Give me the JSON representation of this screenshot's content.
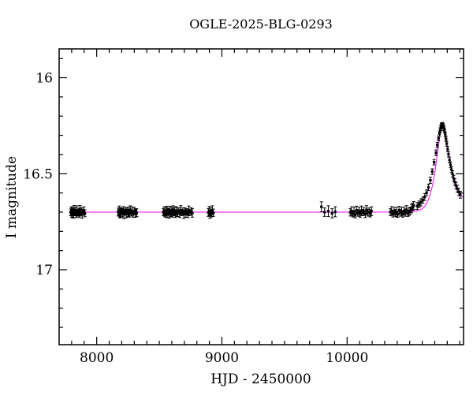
{
  "chart_data": {
    "type": "scatter",
    "title": "OGLE-2025-BLG-0293",
    "xlabel": "HJD - 2450000",
    "ylabel": "I magnitude",
    "xlim": [
      7700,
      10930
    ],
    "ylim": [
      17.39,
      15.85
    ],
    "y_axis_inverted": true,
    "grid": false,
    "x_major_ticks": [
      8000,
      9000,
      10000
    ],
    "x_tick_labels": [
      "8000",
      "9000",
      "10000"
    ],
    "x_minor_step": 100,
    "y_major_ticks": [
      16,
      16.5,
      17
    ],
    "y_tick_labels": [
      "16",
      "16.5",
      "17"
    ],
    "y_minor_step": 0.1,
    "marker_color": "#000000",
    "model_color": "#ff00ff",
    "columns": [
      "hjd_minus_2450000",
      "i_magnitude",
      "error"
    ],
    "points": [
      [
        7792,
        16.701,
        0.018
      ],
      [
        7796,
        16.695,
        0.022
      ],
      [
        7800,
        16.71,
        0.016
      ],
      [
        7804,
        16.692,
        0.02
      ],
      [
        7808,
        16.705,
        0.025
      ],
      [
        7812,
        16.698,
        0.017
      ],
      [
        7816,
        16.712,
        0.019
      ],
      [
        7820,
        16.688,
        0.023
      ],
      [
        7824,
        16.703,
        0.016
      ],
      [
        7830,
        16.696,
        0.021
      ],
      [
        7836,
        16.709,
        0.018
      ],
      [
        7842,
        16.691,
        0.024
      ],
      [
        7848,
        16.704,
        0.017
      ],
      [
        7854,
        16.699,
        0.02
      ],
      [
        7860,
        16.713,
        0.015
      ],
      [
        7866,
        16.687,
        0.022
      ],
      [
        7872,
        16.702,
        0.018
      ],
      [
        7878,
        16.695,
        0.019
      ],
      [
        7884,
        16.708,
        0.023
      ],
      [
        7890,
        16.7,
        0.016
      ],
      [
        7898,
        16.693,
        0.021
      ],
      [
        7906,
        16.706,
        0.018
      ],
      [
        8172,
        16.698,
        0.019
      ],
      [
        8176,
        16.705,
        0.016
      ],
      [
        8180,
        16.69,
        0.022
      ],
      [
        8184,
        16.712,
        0.018
      ],
      [
        8188,
        16.701,
        0.024
      ],
      [
        8192,
        16.694,
        0.017
      ],
      [
        8196,
        16.708,
        0.02
      ],
      [
        8200,
        16.697,
        0.015
      ],
      [
        8206,
        16.703,
        0.021
      ],
      [
        8212,
        16.689,
        0.018
      ],
      [
        8218,
        16.711,
        0.023
      ],
      [
        8224,
        16.7,
        0.016
      ],
      [
        8230,
        16.695,
        0.019
      ],
      [
        8236,
        16.707,
        0.022
      ],
      [
        8242,
        16.692,
        0.017
      ],
      [
        8248,
        16.704,
        0.02
      ],
      [
        8254,
        16.699,
        0.025
      ],
      [
        8260,
        16.71,
        0.016
      ],
      [
        8268,
        16.688,
        0.021
      ],
      [
        8276,
        16.702,
        0.018
      ],
      [
        8284,
        16.696,
        0.023
      ],
      [
        8292,
        16.709,
        0.017
      ],
      [
        8300,
        16.694,
        0.019
      ],
      [
        8308,
        16.705,
        0.022
      ],
      [
        8314,
        16.698,
        0.016
      ],
      [
        8320,
        16.703,
        0.02
      ],
      [
        8532,
        16.7,
        0.018
      ],
      [
        8538,
        16.693,
        0.021
      ],
      [
        8544,
        16.708,
        0.016
      ],
      [
        8550,
        16.696,
        0.023
      ],
      [
        8556,
        16.711,
        0.017
      ],
      [
        8562,
        16.689,
        0.02
      ],
      [
        8568,
        16.704,
        0.025
      ],
      [
        8574,
        16.698,
        0.016
      ],
      [
        8580,
        16.712,
        0.019
      ],
      [
        8586,
        16.691,
        0.022
      ],
      [
        8592,
        16.705,
        0.018
      ],
      [
        8598,
        16.699,
        0.024
      ],
      [
        8604,
        16.709,
        0.017
      ],
      [
        8610,
        16.687,
        0.02
      ],
      [
        8616,
        16.703,
        0.015
      ],
      [
        8622,
        16.697,
        0.022
      ],
      [
        8628,
        16.71,
        0.018
      ],
      [
        8634,
        16.692,
        0.021
      ],
      [
        8640,
        16.706,
        0.016
      ],
      [
        8648,
        16.7,
        0.023
      ],
      [
        8656,
        16.694,
        0.017
      ],
      [
        8664,
        16.708,
        0.02
      ],
      [
        8672,
        16.69,
        0.024
      ],
      [
        8680,
        16.702,
        0.016
      ],
      [
        8688,
        16.697,
        0.019
      ],
      [
        8696,
        16.711,
        0.022
      ],
      [
        8704,
        16.695,
        0.018
      ],
      [
        8712,
        16.705,
        0.021
      ],
      [
        8720,
        16.699,
        0.017
      ],
      [
        8728,
        16.708,
        0.02
      ],
      [
        8736,
        16.693,
        0.025
      ],
      [
        8744,
        16.701,
        0.016
      ],
      [
        8754,
        16.696,
        0.019
      ],
      [
        8764,
        16.704,
        0.022
      ],
      [
        8892,
        16.702,
        0.02
      ],
      [
        8898,
        16.694,
        0.024
      ],
      [
        8904,
        16.715,
        0.017
      ],
      [
        8910,
        16.698,
        0.021
      ],
      [
        8916,
        16.707,
        0.018
      ],
      [
        8924,
        16.69,
        0.023
      ],
      [
        8932,
        16.703,
        0.019
      ],
      [
        9795,
        16.672,
        0.026
      ],
      [
        9820,
        16.7,
        0.022
      ],
      [
        9850,
        16.695,
        0.028
      ],
      [
        9880,
        16.706,
        0.024
      ],
      [
        9905,
        16.698,
        0.026
      ],
      [
        10025,
        16.701,
        0.019
      ],
      [
        10035,
        16.694,
        0.022
      ],
      [
        10045,
        16.709,
        0.016
      ],
      [
        10055,
        16.697,
        0.024
      ],
      [
        10065,
        16.712,
        0.018
      ],
      [
        10075,
        16.69,
        0.021
      ],
      [
        10085,
        16.704,
        0.017
      ],
      [
        10095,
        16.698,
        0.023
      ],
      [
        10105,
        16.707,
        0.019
      ],
      [
        10115,
        16.693,
        0.025
      ],
      [
        10125,
        16.702,
        0.016
      ],
      [
        10135,
        16.696,
        0.02
      ],
      [
        10145,
        16.71,
        0.018
      ],
      [
        10155,
        16.688,
        0.022
      ],
      [
        10165,
        16.703,
        0.017
      ],
      [
        10175,
        16.699,
        0.021
      ],
      [
        10185,
        16.706,
        0.019
      ],
      [
        10195,
        16.695,
        0.023
      ],
      [
        10345,
        16.7,
        0.018
      ],
      [
        10355,
        16.693,
        0.022
      ],
      [
        10365,
        16.708,
        0.017
      ],
      [
        10375,
        16.696,
        0.021
      ],
      [
        10385,
        16.705,
        0.019
      ],
      [
        10395,
        16.699,
        0.024
      ],
      [
        10405,
        16.711,
        0.016
      ],
      [
        10415,
        16.69,
        0.02
      ],
      [
        10425,
        16.703,
        0.018
      ],
      [
        10435,
        16.697,
        0.023
      ],
      [
        10445,
        16.709,
        0.017
      ],
      [
        10455,
        16.694,
        0.021
      ],
      [
        10465,
        16.702,
        0.019
      ],
      [
        10475,
        16.688,
        0.022
      ],
      [
        10485,
        16.706,
        0.016
      ],
      [
        10495,
        16.698,
        0.02
      ],
      [
        10505,
        16.692,
        0.018
      ],
      [
        10515,
        16.681,
        0.022
      ],
      [
        10524,
        16.673,
        0.019
      ],
      [
        10532,
        16.666,
        0.021
      ],
      [
        10560,
        16.668,
        0.018
      ],
      [
        10575,
        16.659,
        0.017
      ],
      [
        10590,
        16.649,
        0.019
      ],
      [
        10605,
        16.637,
        0.016
      ],
      [
        10620,
        16.621,
        0.018
      ],
      [
        10635,
        16.599,
        0.015
      ],
      [
        10650,
        16.571,
        0.017
      ],
      [
        10665,
        16.534,
        0.016
      ],
      [
        10680,
        16.489,
        0.015
      ],
      [
        10695,
        16.44,
        0.014
      ],
      [
        10710,
        16.391,
        0.015
      ],
      [
        10720,
        16.351,
        0.014
      ],
      [
        10730,
        16.316,
        0.013
      ],
      [
        10738,
        16.291,
        0.013
      ],
      [
        10744,
        16.273,
        0.012
      ],
      [
        10748,
        16.263,
        0.012
      ],
      [
        10751,
        16.255,
        0.012
      ],
      [
        10754,
        16.25,
        0.011
      ],
      [
        10757,
        16.246,
        0.011
      ],
      [
        10760,
        16.244,
        0.011
      ],
      [
        10763,
        16.246,
        0.011
      ],
      [
        10766,
        16.249,
        0.012
      ],
      [
        10770,
        16.256,
        0.012
      ],
      [
        10774,
        16.264,
        0.012
      ],
      [
        10778,
        16.276,
        0.012
      ],
      [
        10784,
        16.296,
        0.013
      ],
      [
        10790,
        16.319,
        0.013
      ],
      [
        10796,
        16.343,
        0.013
      ],
      [
        10803,
        16.372,
        0.014
      ],
      [
        10810,
        16.399,
        0.014
      ],
      [
        10818,
        16.428,
        0.015
      ],
      [
        10826,
        16.454,
        0.015
      ],
      [
        10834,
        16.479,
        0.015
      ],
      [
        10842,
        16.501,
        0.016
      ],
      [
        10851,
        16.524,
        0.016
      ],
      [
        10860,
        16.543,
        0.017
      ],
      [
        10870,
        16.562,
        0.017
      ],
      [
        10880,
        16.578,
        0.018
      ],
      [
        10892,
        16.595,
        0.018
      ],
      [
        10904,
        16.609,
        0.018
      ]
    ],
    "model": [
      [
        7780,
        16.7
      ],
      [
        8400,
        16.7
      ],
      [
        9000,
        16.7
      ],
      [
        9600,
        16.7
      ],
      [
        10000,
        16.7
      ],
      [
        10200,
        16.7
      ],
      [
        10350,
        16.699
      ],
      [
        10450,
        16.698
      ],
      [
        10500,
        16.697
      ],
      [
        10540,
        16.695
      ],
      [
        10560,
        16.693
      ],
      [
        10580,
        16.689
      ],
      [
        10600,
        16.682
      ],
      [
        10620,
        16.67
      ],
      [
        10640,
        16.649
      ],
      [
        10660,
        16.616
      ],
      [
        10680,
        16.566
      ],
      [
        10700,
        16.496
      ],
      [
        10715,
        16.428
      ],
      [
        10730,
        16.352
      ],
      [
        10740,
        16.306
      ],
      [
        10748,
        16.272
      ],
      [
        10754,
        16.253
      ],
      [
        10760,
        16.244
      ],
      [
        10766,
        16.248
      ],
      [
        10772,
        16.259
      ],
      [
        10780,
        16.283
      ],
      [
        10790,
        16.319
      ],
      [
        10800,
        16.358
      ],
      [
        10812,
        16.402
      ],
      [
        10825,
        16.447
      ],
      [
        10840,
        16.492
      ],
      [
        10855,
        16.528
      ],
      [
        10870,
        16.558
      ],
      [
        10885,
        16.582
      ],
      [
        10900,
        16.601
      ],
      [
        10915,
        16.616
      ],
      [
        10925,
        16.624
      ]
    ]
  }
}
